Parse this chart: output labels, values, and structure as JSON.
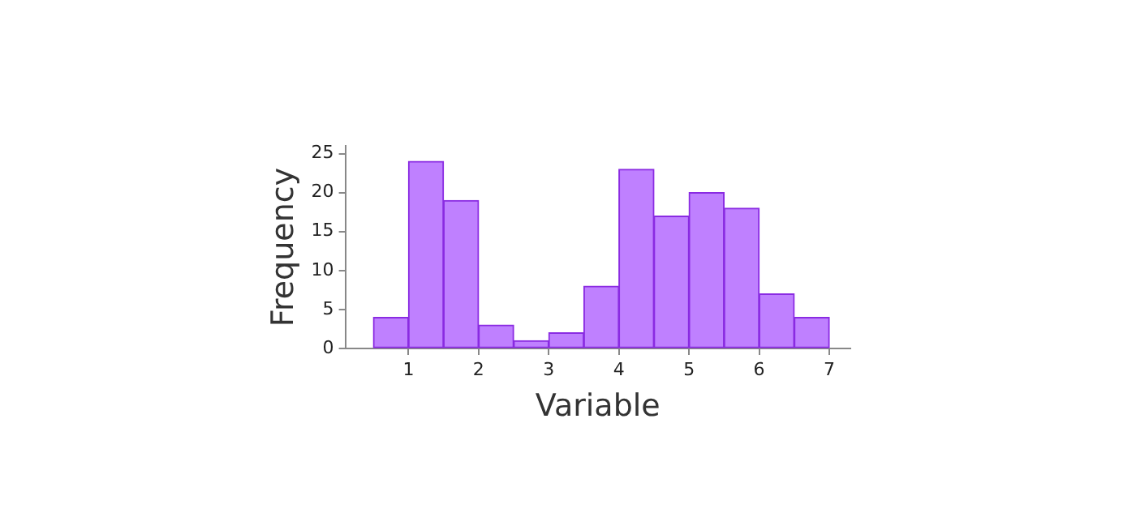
{
  "chart_data": {
    "type": "histogram",
    "xlabel": "Variable",
    "ylabel": "Frequency",
    "bins": [
      0.5,
      1,
      1.5,
      2,
      2.5,
      3,
      3.5,
      4,
      4.5,
      5,
      5.5,
      6,
      6.5,
      7
    ],
    "values": [
      4,
      24,
      19,
      3,
      1,
      2,
      8,
      23,
      17,
      20,
      18,
      7,
      4
    ],
    "color": "#bf80ff",
    "xlim": [
      0.1,
      7.3
    ],
    "xticks": [
      1,
      2,
      3,
      4,
      5,
      6,
      7
    ],
    "ylim": [
      0,
      26
    ],
    "yticks": [
      0,
      5,
      10,
      15,
      20,
      25
    ],
    "grid": false,
    "legend": false
  }
}
